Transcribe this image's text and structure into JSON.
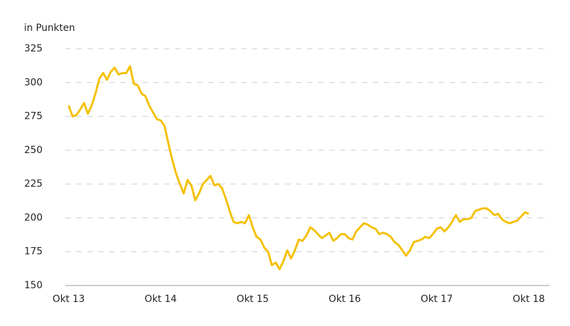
{
  "chart_data": {
    "type": "line",
    "y_axis_label": "in Punkten",
    "categories": [
      "Okt 13",
      null,
      null,
      null,
      null,
      null,
      null,
      null,
      null,
      null,
      null,
      null,
      null,
      null,
      null,
      null,
      null,
      null,
      null,
      null,
      null,
      null,
      null,
      null,
      "Okt 14",
      null,
      null,
      null,
      null,
      null,
      null,
      null,
      null,
      null,
      null,
      null,
      null,
      null,
      null,
      null,
      null,
      null,
      null,
      null,
      null,
      null,
      null,
      null,
      "Okt 15",
      null,
      null,
      null,
      null,
      null,
      null,
      null,
      null,
      null,
      null,
      null,
      null,
      null,
      null,
      null,
      null,
      null,
      null,
      null,
      null,
      null,
      null,
      null,
      "Okt 16",
      null,
      null,
      null,
      null,
      null,
      null,
      null,
      null,
      null,
      null,
      null,
      null,
      null,
      null,
      null,
      null,
      null,
      null,
      null,
      null,
      null,
      null,
      null,
      "Okt 17",
      null,
      null,
      null,
      null,
      null,
      null,
      null,
      null,
      null,
      null,
      null,
      null,
      null,
      null,
      null,
      null,
      null,
      null,
      null,
      null,
      null,
      null,
      null,
      "Okt 18"
    ],
    "values": [
      283,
      275,
      276,
      280,
      285,
      277,
      283,
      292,
      303,
      307,
      302,
      308,
      311,
      306,
      307,
      307,
      312,
      299,
      298,
      292,
      290,
      283,
      278,
      273,
      272,
      268,
      255,
      243,
      233,
      225,
      218,
      228,
      224,
      213,
      218,
      225,
      228,
      231,
      224,
      225,
      222,
      214,
      205,
      197,
      196,
      197,
      196,
      202,
      193,
      186,
      184,
      178,
      175,
      165,
      167,
      162,
      168,
      176,
      170,
      176,
      184,
      183,
      187,
      193,
      191,
      188,
      185,
      187,
      189,
      183,
      185,
      188,
      188,
      185,
      184,
      190,
      193,
      196,
      195,
      193,
      192,
      188,
      189,
      188,
      186,
      182,
      180,
      176,
      172,
      176,
      182,
      183,
      184,
      186,
      185,
      188,
      192,
      193,
      190,
      193,
      197,
      202,
      197,
      199,
      199,
      200,
      205,
      206,
      207,
      207,
      205,
      202,
      203,
      199,
      197,
      196,
      197,
      198,
      201,
      204,
      203
    ],
    "color": "#f5c000",
    "ylim": [
      150,
      325
    ],
    "yticks": [
      150,
      175,
      200,
      225,
      250,
      275,
      300,
      325
    ],
    "grid": true
  }
}
